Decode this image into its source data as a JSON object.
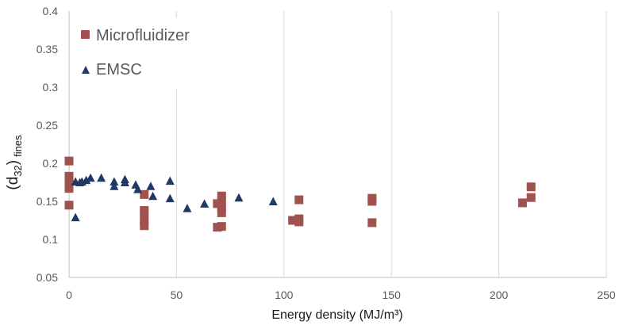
{
  "chart_data": {
    "type": "scatter",
    "xlabel": "Energy density (MJ/m³)",
    "ylabel_main": "(d",
    "ylabel_sub": "32",
    "ylabel_close": ")",
    "ylabel_suffix": "fines",
    "xlim": [
      0,
      250
    ],
    "ylim": [
      0.05,
      0.4
    ],
    "xticks": [
      0,
      50,
      100,
      150,
      200,
      250
    ],
    "yticks": [
      0.05,
      0.1,
      0.15,
      0.2,
      0.25,
      0.3,
      0.35,
      0.4
    ],
    "ytick_labels": [
      "0.05",
      "0.1",
      "0.15",
      "0.2",
      "0.25",
      "0.3",
      "0.35",
      "0.4"
    ],
    "grid": "vertical",
    "legend_position": "top-left",
    "series": [
      {
        "name": "Microfluidizer",
        "marker": "square",
        "color": "#A0524E",
        "points": [
          [
            0,
            0.203
          ],
          [
            0,
            0.183
          ],
          [
            0,
            0.178
          ],
          [
            0,
            0.172
          ],
          [
            0,
            0.167
          ],
          [
            0,
            0.145
          ],
          [
            35,
            0.159
          ],
          [
            35,
            0.138
          ],
          [
            35,
            0.135
          ],
          [
            35,
            0.124
          ],
          [
            35,
            0.118
          ],
          [
            69,
            0.147
          ],
          [
            69,
            0.116
          ],
          [
            71,
            0.157
          ],
          [
            71,
            0.15
          ],
          [
            71,
            0.142
          ],
          [
            71,
            0.135
          ],
          [
            71,
            0.117
          ],
          [
            104,
            0.125
          ],
          [
            107,
            0.152
          ],
          [
            107,
            0.127
          ],
          [
            107,
            0.123
          ],
          [
            141,
            0.154
          ],
          [
            141,
            0.15
          ],
          [
            141,
            0.122
          ],
          [
            211,
            0.148
          ],
          [
            215,
            0.169
          ],
          [
            215,
            0.155
          ]
        ]
      },
      {
        "name": "EMSC",
        "marker": "triangle",
        "color": "#1F3864",
        "points": [
          [
            3,
            0.129
          ],
          [
            3,
            0.176
          ],
          [
            5,
            0.175
          ],
          [
            6,
            0.176
          ],
          [
            8,
            0.178
          ],
          [
            10,
            0.181
          ],
          [
            15,
            0.181
          ],
          [
            21,
            0.176
          ],
          [
            21,
            0.17
          ],
          [
            26,
            0.179
          ],
          [
            26,
            0.175
          ],
          [
            31,
            0.172
          ],
          [
            32,
            0.166
          ],
          [
            38,
            0.17
          ],
          [
            39,
            0.157
          ],
          [
            47,
            0.177
          ],
          [
            47,
            0.154
          ],
          [
            55,
            0.141
          ],
          [
            63,
            0.147
          ],
          [
            79,
            0.155
          ],
          [
            95,
            0.15
          ]
        ]
      }
    ]
  }
}
